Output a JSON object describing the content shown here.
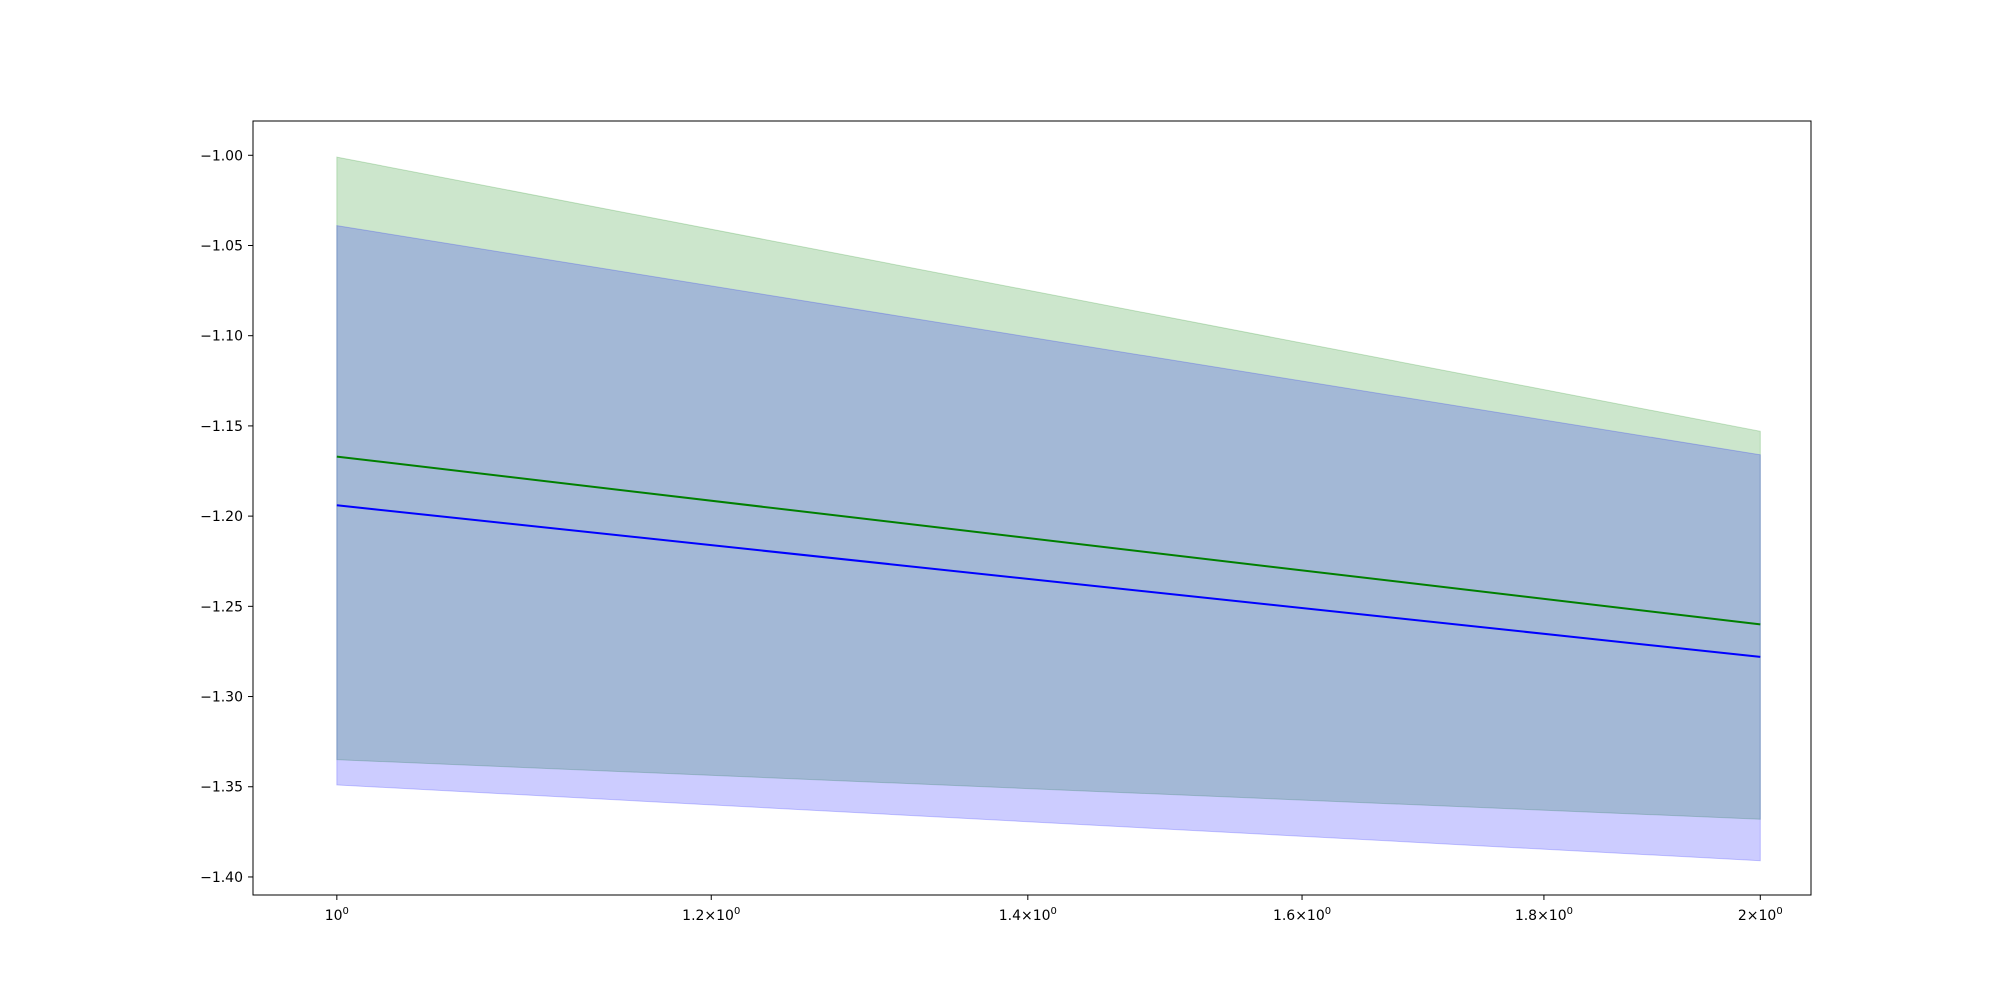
{
  "chart_data": {
    "type": "line",
    "x_scale": "log",
    "xlim": [
      0.96,
      2.05
    ],
    "ylim": [
      -1.41,
      -0.981
    ],
    "grid": false,
    "x_ticks": [
      {
        "value": 1.0,
        "base": "10",
        "exp": "0",
        "prefix": ""
      },
      {
        "value": 1.2,
        "base": "10",
        "exp": "0",
        "prefix": "1.2×"
      },
      {
        "value": 1.4,
        "base": "10",
        "exp": "0",
        "prefix": "1.4×"
      },
      {
        "value": 1.6,
        "base": "10",
        "exp": "0",
        "prefix": "1.6×"
      },
      {
        "value": 1.8,
        "base": "10",
        "exp": "0",
        "prefix": "1.8×"
      },
      {
        "value": 2.0,
        "base": "10",
        "exp": "0",
        "prefix": "2×"
      }
    ],
    "y_ticks": [
      {
        "value": -1.0,
        "label": "−1.00"
      },
      {
        "value": -1.05,
        "label": "−1.05"
      },
      {
        "value": -1.1,
        "label": "−1.10"
      },
      {
        "value": -1.15,
        "label": "−1.15"
      },
      {
        "value": -1.2,
        "label": "−1.20"
      },
      {
        "value": -1.25,
        "label": "−1.25"
      },
      {
        "value": -1.3,
        "label": "−1.30"
      },
      {
        "value": -1.35,
        "label": "−1.35"
      },
      {
        "value": -1.4,
        "label": "−1.40"
      }
    ],
    "series": [
      {
        "color": "#008000",
        "band_color": "#008000",
        "x": [
          1.0,
          2.0
        ],
        "y": [
          -1.167,
          -1.26
        ],
        "band_upper": [
          -1.001,
          -1.153
        ],
        "band_lower": [
          -1.335,
          -1.368
        ]
      },
      {
        "color": "#0000ff",
        "band_color": "#0000ff",
        "x": [
          1.0,
          2.0
        ],
        "y": [
          -1.194,
          -1.278
        ],
        "band_upper": [
          -1.039,
          -1.166
        ],
        "band_lower": [
          -1.349,
          -1.391
        ]
      }
    ]
  }
}
